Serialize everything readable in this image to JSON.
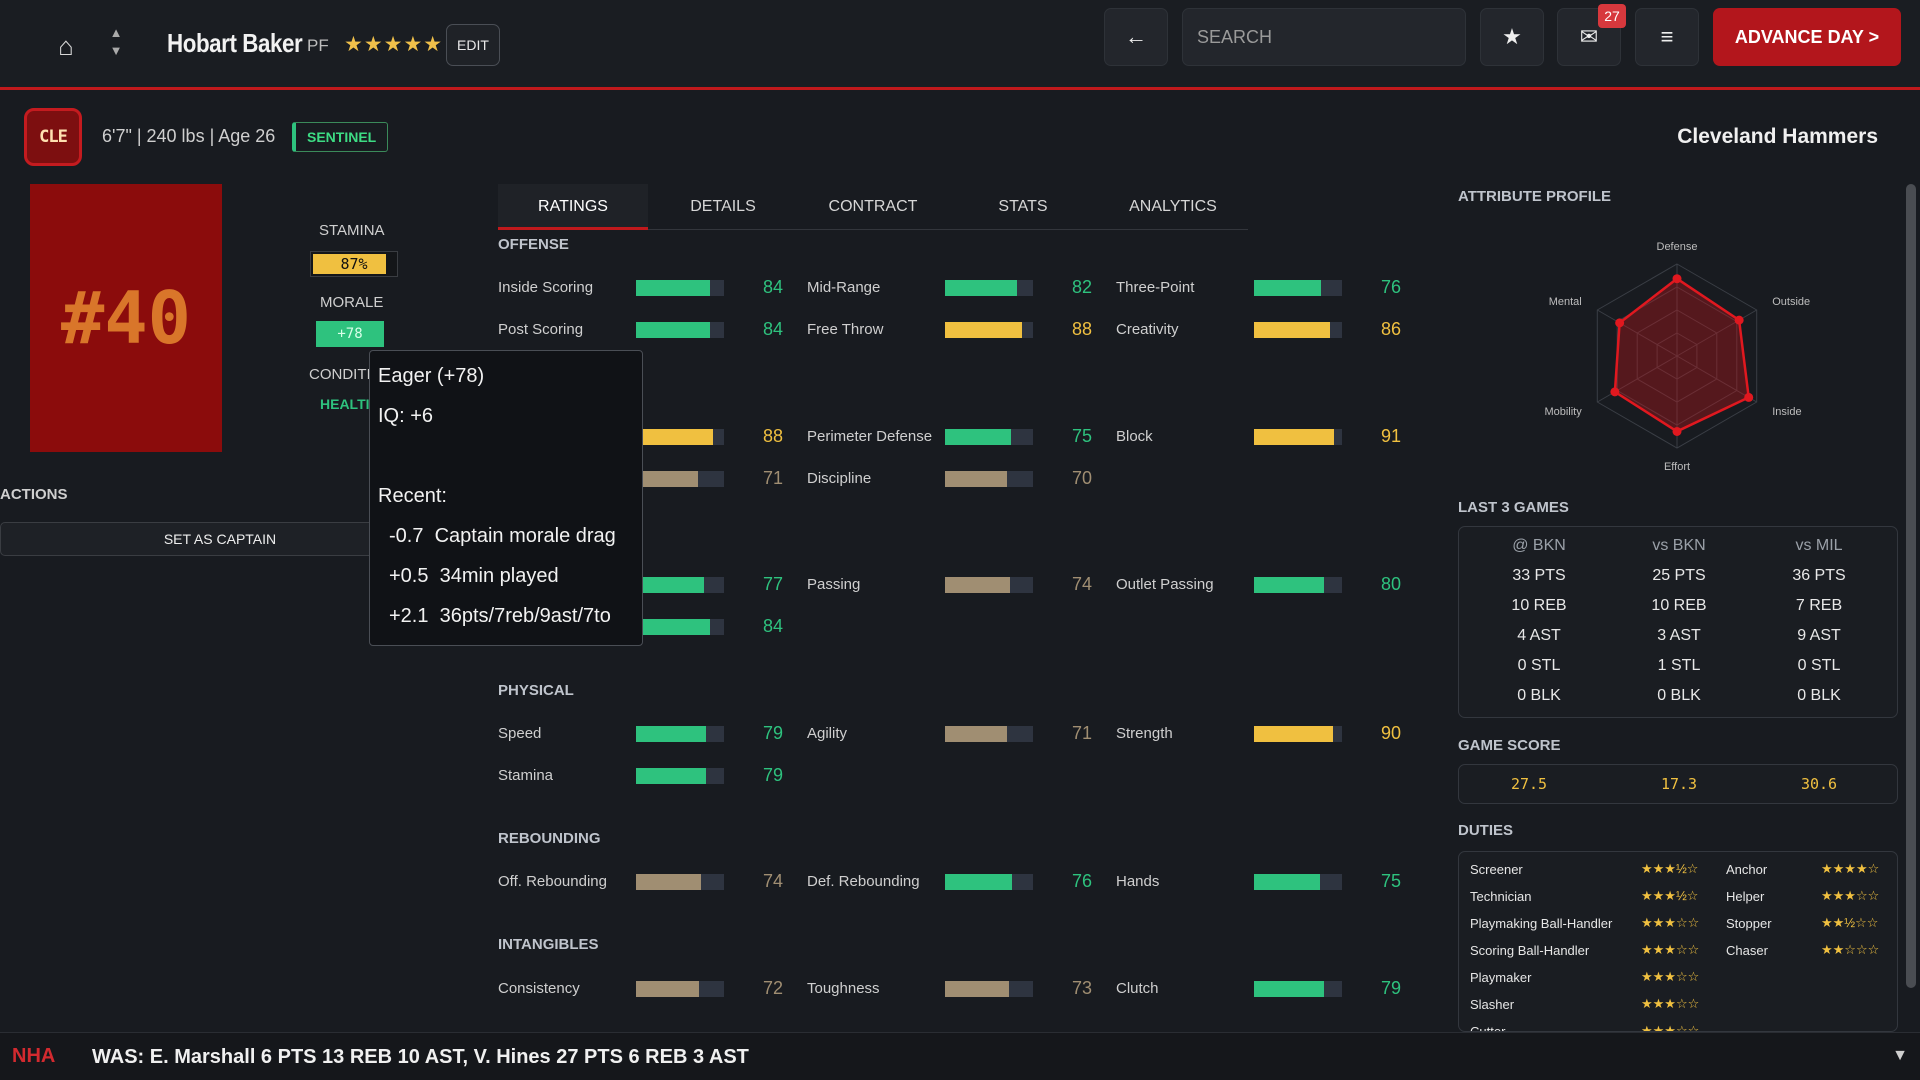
{
  "topbar": {
    "player_name": "Hobart Baker",
    "position": "PF",
    "stars": "★★★★★",
    "edit_label": "EDIT",
    "back_glyph": "←",
    "search_placeholder": "SEARCH",
    "star_glyph": "★",
    "mail_glyph": "✉",
    "mail_badge": "27",
    "menu_glyph": "≡",
    "advance_label": "ADVANCE DAY >"
  },
  "header": {
    "team_abbr": "CLE",
    "bio": "6'7\" | 240 lbs | Age 26",
    "role": "SENTINEL",
    "team_name": "Cleveland Hammers"
  },
  "left": {
    "jersey": "#40",
    "stamina_label": "STAMINA",
    "stamina_value": "87%",
    "stamina_fraction": 0.87,
    "morale_label": "MORALE",
    "morale_value": "+78",
    "condition_label": "CONDITI",
    "condition_value": "HEALTI",
    "actions_label": "ACTIONS",
    "captain_button": "SET AS CAPTAIN"
  },
  "tabs": [
    "RATINGS",
    "DETAILS",
    "CONTRACT",
    "STATS",
    "ANALYTICS"
  ],
  "ratings": {
    "sections": [
      {
        "name": "OFFENSE"
      },
      {
        "name": "PHYSICAL"
      },
      {
        "name": "REBOUNDING"
      },
      {
        "name": "INTANGIBLES"
      }
    ],
    "items": [
      {
        "label": "Inside Scoring",
        "value": 84,
        "color": "green"
      },
      {
        "label": "Mid-Range",
        "value": 82,
        "color": "green"
      },
      {
        "label": "Three-Point",
        "value": 76,
        "color": "green"
      },
      {
        "label": "Post Scoring",
        "value": 84,
        "color": "green"
      },
      {
        "label": "Free Throw",
        "value": 88,
        "color": "yellow"
      },
      {
        "label": "Creativity",
        "value": 86,
        "color": "yellow"
      },
      {
        "label": "",
        "value": 88,
        "color": "yellow"
      },
      {
        "label": "Perimeter Defense",
        "value": 75,
        "color": "green"
      },
      {
        "label": "Block",
        "value": 91,
        "color": "yellow"
      },
      {
        "label": "",
        "value": 71,
        "color": "tan"
      },
      {
        "label": "Discipline",
        "value": 70,
        "color": "tan"
      },
      {
        "label": "",
        "value": 77,
        "color": "green"
      },
      {
        "label": "Passing",
        "value": 74,
        "color": "tan"
      },
      {
        "label": "Outlet Passing",
        "value": 80,
        "color": "green"
      },
      {
        "label": "",
        "value": 84,
        "color": "green"
      },
      {
        "label": "Speed",
        "value": 79,
        "color": "green"
      },
      {
        "label": "Agility",
        "value": 71,
        "color": "tan"
      },
      {
        "label": "Strength",
        "value": 90,
        "color": "yellow"
      },
      {
        "label": "Stamina",
        "value": 79,
        "color": "green"
      },
      {
        "label": "Off. Rebounding",
        "value": 74,
        "color": "tan"
      },
      {
        "label": "Def. Rebounding",
        "value": 76,
        "color": "green"
      },
      {
        "label": "Hands",
        "value": 75,
        "color": "green"
      },
      {
        "label": "Consistency",
        "value": 72,
        "color": "tan"
      },
      {
        "label": "Toughness",
        "value": 73,
        "color": "tan"
      },
      {
        "label": "Clutch",
        "value": 79,
        "color": "green"
      }
    ]
  },
  "colors": {
    "green": "#2ec27e",
    "yellow": "#f0c040",
    "tan": "#a08e72",
    "accent": "#c0191c"
  },
  "tooltip": {
    "title": "Eager (+78)",
    "iq": "IQ: +6",
    "recent_label": "Recent:",
    "recent": [
      {
        "delta": "-0.7",
        "text": "Captain morale drag"
      },
      {
        "delta": "+0.5",
        "text": "34min played"
      },
      {
        "delta": "+2.1",
        "text": "36pts/7reb/9ast/7to"
      }
    ]
  },
  "attribute_profile": {
    "title": "ATTRIBUTE PROFILE",
    "axes": [
      "Defense",
      "Outside",
      "Inside",
      "Effort",
      "Mobility",
      "Mental"
    ],
    "values": [
      0.84,
      0.78,
      0.9,
      0.82,
      0.78,
      0.72
    ]
  },
  "last_games": {
    "title": "LAST 3 GAMES",
    "games": [
      {
        "opp": "@ BKN",
        "pts": "33 PTS",
        "reb": "10 REB",
        "ast": "4 AST",
        "stl": "0 STL",
        "blk": "0 BLK"
      },
      {
        "opp": "vs BKN",
        "pts": "25 PTS",
        "reb": "10 REB",
        "ast": "3 AST",
        "stl": "1 STL",
        "blk": "0 BLK"
      },
      {
        "opp": "vs MIL",
        "pts": "36 PTS",
        "reb": "7 REB",
        "ast": "9 AST",
        "stl": "0 STL",
        "blk": "0 BLK"
      }
    ]
  },
  "game_score": {
    "title": "GAME SCORE",
    "values": [
      "27.5",
      "17.3",
      "30.6"
    ]
  },
  "duties": {
    "title": "DUTIES",
    "left": [
      {
        "name": "Screener",
        "stars": "★★★½☆"
      },
      {
        "name": "Technician",
        "stars": "★★★½☆"
      },
      {
        "name": "Playmaking Ball-Handler",
        "stars": "★★★☆☆"
      },
      {
        "name": "Scoring Ball-Handler",
        "stars": "★★★☆☆"
      },
      {
        "name": "Playmaker",
        "stars": "★★★☆☆"
      },
      {
        "name": "Slasher",
        "stars": "★★★☆☆"
      },
      {
        "name": "Cutter",
        "stars": "★★★☆☆"
      }
    ],
    "right": [
      {
        "name": "Anchor",
        "stars": "★★★★☆"
      },
      {
        "name": "Helper",
        "stars": "★★★☆☆"
      },
      {
        "name": "Stopper",
        "stars": "★★½☆☆"
      },
      {
        "name": "Chaser",
        "stars": "★★☆☆☆"
      }
    ]
  },
  "ticker": {
    "league": "NHA",
    "text": "WAS: E. Marshall 6 PTS 13 REB 10 AST, V. Hines 27 PTS 6 REB 3 AST",
    "arrow": "▼"
  }
}
